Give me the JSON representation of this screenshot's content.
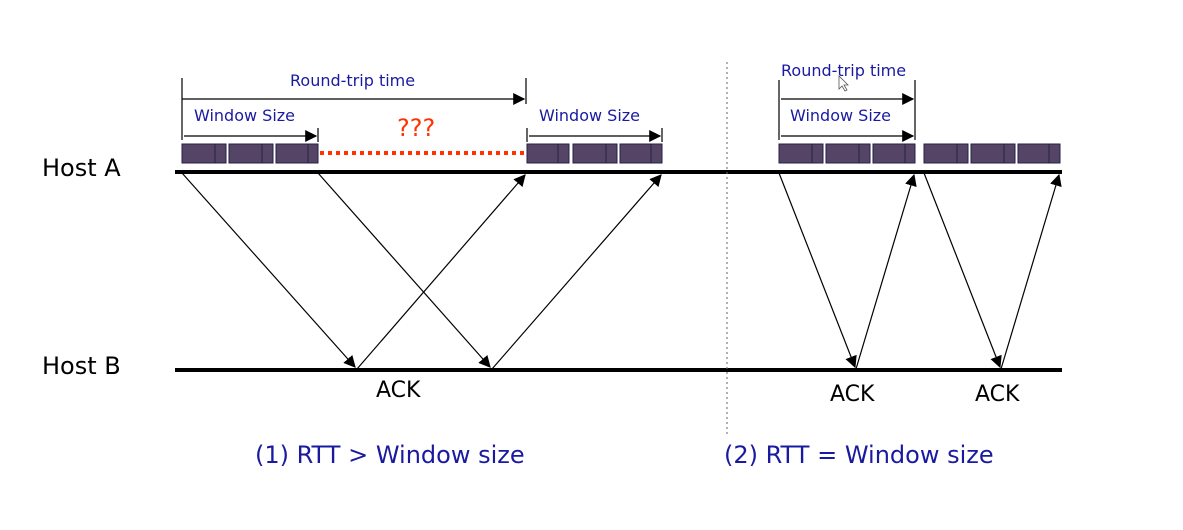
{
  "hosts": {
    "a": "Host A",
    "b": "Host B"
  },
  "left": {
    "rtt_label": "Round-trip time",
    "window_label_1": "Window Size",
    "window_label_2": "Window Size",
    "unknown_gap": "???",
    "ack_label": "ACK",
    "caption": "(1) RTT > Window size"
  },
  "right": {
    "rtt_label": "Round-trip time",
    "window_label": "Window Size",
    "ack_label_1": "ACK",
    "ack_label_2": "ACK",
    "caption": "(2) RTT = Window size"
  },
  "colors": {
    "blue_text": "#1a1aa0",
    "packet": "#554466",
    "gap": "#ff3300"
  }
}
